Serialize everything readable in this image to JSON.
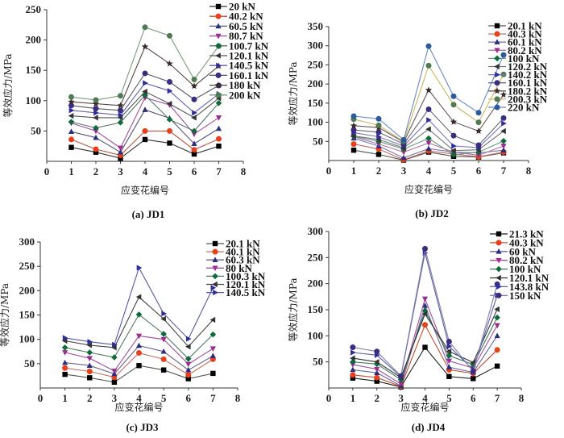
{
  "figure": {
    "panels": [
      "JD1",
      "JD2",
      "JD3",
      "JD4"
    ]
  },
  "chart_data": [
    {
      "type": "line",
      "id": "a",
      "caption": "(a) JD1",
      "title": "",
      "xlabel": "应变花编号",
      "ylabel": "等效应力/MPa",
      "xlim": [
        0,
        8
      ],
      "ylim": [
        0,
        250
      ],
      "x_ticks": [
        "0",
        "1",
        "2",
        "3",
        "4",
        "5",
        "6",
        "7",
        "8"
      ],
      "y_ticks": [
        "50",
        "100",
        "150",
        "200",
        "250"
      ],
      "y_tick_values": [
        50,
        100,
        150,
        200,
        250
      ],
      "grid": false,
      "legend_position": "top-right",
      "x": [
        1,
        2,
        3,
        4,
        5,
        6,
        7
      ],
      "series": [
        {
          "name": "20 kN",
          "marker": "square",
          "color": "#000000",
          "line": "#333333",
          "values": [
            23,
            15,
            5,
            36,
            30,
            12,
            25
          ]
        },
        {
          "name": "40.2 kN",
          "marker": "circle",
          "color": "#e8401c",
          "line": "#b5553c",
          "values": [
            36,
            20,
            10,
            50,
            50,
            19,
            37
          ]
        },
        {
          "name": "60.5 kN",
          "marker": "triangle-up",
          "color": "#2b2d7f",
          "line": "#555577",
          "values": [
            49,
            39,
            15,
            85,
            71,
            29,
            54
          ]
        },
        {
          "name": "80.7 kN",
          "marker": "triangle-down",
          "color": "#9b2d91",
          "line": "#a050a0",
          "values": [
            63,
            50,
            22,
            105,
            93,
            45,
            72
          ]
        },
        {
          "name": "100.7 kN",
          "marker": "diamond",
          "color": "#0d6b3b",
          "line": "#557766",
          "values": [
            65,
            55,
            64,
            109,
            69,
            50,
            96
          ]
        },
        {
          "name": "120.1 kN",
          "marker": "triangle-left",
          "color": "#333333",
          "line": "#555555",
          "values": [
            75,
            72,
            72,
            115,
            95,
            72,
            104
          ]
        },
        {
          "name": "140.5 kN",
          "marker": "triangle-right",
          "color": "#2d2d9b",
          "line": "#6060a8",
          "values": [
            84,
            80,
            76,
            129,
            116,
            80,
            111
          ]
        },
        {
          "name": "160.1 kN",
          "marker": "circle",
          "color": "#3a2d7f",
          "line": "#555566",
          "values": [
            92,
            87,
            84,
            145,
            131,
            102,
            125
          ]
        },
        {
          "name": "180 kN",
          "marker": "star",
          "color": "#3b2a2a",
          "line": "#554444",
          "values": [
            98,
            95,
            92,
            189,
            161,
            124,
            157
          ]
        },
        {
          "name": "200 kN",
          "marker": "circle",
          "color": "#4f7a52",
          "line": "#7a9a7c",
          "values": [
            106,
            101,
            108,
            221,
            207,
            135,
            190
          ]
        }
      ]
    },
    {
      "type": "line",
      "id": "b",
      "caption": "(b) JD2",
      "title": "",
      "xlabel": "应变花编号",
      "ylabel": "等效应力/MPa",
      "xlim": [
        0,
        8
      ],
      "ylim": [
        0,
        350
      ],
      "x_ticks": [
        "0",
        "1",
        "2",
        "3",
        "4",
        "5",
        "6",
        "7",
        "8"
      ],
      "y_ticks": [
        "50",
        "100",
        "150",
        "200",
        "250",
        "300",
        "350"
      ],
      "y_tick_values": [
        50,
        100,
        150,
        200,
        250,
        300,
        350
      ],
      "grid": false,
      "legend_position": "top-right",
      "x": [
        1,
        2,
        3,
        4,
        5,
        6,
        7
      ],
      "series": [
        {
          "name": "20.1 kN",
          "marker": "square",
          "color": "#000000",
          "line": "#555555",
          "values": [
            27,
            16,
            1,
            22,
            11,
            9,
            20
          ]
        },
        {
          "name": "40.3 kN",
          "marker": "circle",
          "color": "#e8401c",
          "line": "#c07060",
          "values": [
            43,
            30,
            2,
            25,
            17,
            10,
            22
          ]
        },
        {
          "name": "60.1 kN",
          "marker": "triangle-up",
          "color": "#2b2d7f",
          "line": "#7777aa",
          "values": [
            58,
            38,
            7,
            31,
            22,
            20,
            27
          ]
        },
        {
          "name": "80.2 kN",
          "marker": "triangle-down",
          "color": "#9b2d91",
          "line": "#b070b0",
          "values": [
            62,
            43,
            22,
            46,
            22,
            14,
            38
          ]
        },
        {
          "name": "100 kN",
          "marker": "diamond",
          "color": "#0d6b3b",
          "line": "#669977",
          "values": [
            63,
            50,
            30,
            58,
            15,
            22,
            51
          ]
        },
        {
          "name": "120.2 kN",
          "marker": "triangle-left",
          "color": "#333333",
          "line": "#777777",
          "values": [
            64,
            55,
            33,
            82,
            26,
            28,
            77
          ]
        },
        {
          "name": "140.2 kN",
          "marker": "triangle-right",
          "color": "#2d2d9b",
          "line": "#7777bb",
          "values": [
            73,
            62,
            38,
            106,
            38,
            34,
            97
          ]
        },
        {
          "name": "160.1 kN",
          "marker": "circle",
          "color": "#3a2d7f",
          "line": "#666677",
          "values": [
            80,
            74,
            43,
            134,
            65,
            40,
            111
          ]
        },
        {
          "name": "180.2 kN",
          "marker": "star",
          "color": "#3b2a2a",
          "line": "#665555",
          "values": [
            91,
            86,
            48,
            184,
            101,
            77,
            172
          ]
        },
        {
          "name": "200.3 kN",
          "marker": "circle",
          "color": "#4f7a52",
          "line": "#c8b860",
          "values": [
            108,
            92,
            50,
            248,
            146,
            100,
            225
          ]
        },
        {
          "name": "220 kN",
          "marker": "circle",
          "color": "#2b5aa0",
          "line": "#6a8ac0",
          "values": [
            116,
            109,
            54,
            299,
            168,
            125,
            276
          ]
        }
      ]
    },
    {
      "type": "line",
      "id": "c",
      "caption": "(c) JD3",
      "title": "",
      "xlabel": "应变花编号",
      "ylabel": "等效应力/MPa",
      "xlim": [
        0,
        8
      ],
      "ylim": [
        0,
        300
      ],
      "x_ticks": [
        "0",
        "1",
        "2",
        "3",
        "4",
        "5",
        "6",
        "7",
        "8"
      ],
      "y_ticks": [
        "50",
        "100",
        "150",
        "200",
        "250",
        "300"
      ],
      "y_tick_values": [
        50,
        100,
        150,
        200,
        250,
        300
      ],
      "grid": false,
      "legend_position": "top-right",
      "x": [
        1,
        2,
        3,
        4,
        5,
        6,
        7
      ],
      "series": [
        {
          "name": "20.1 kN",
          "marker": "square",
          "color": "#000000",
          "line": "#555555",
          "values": [
            28,
            21,
            12,
            46,
            37,
            19,
            30
          ]
        },
        {
          "name": "40.1 kN",
          "marker": "circle",
          "color": "#e8401c",
          "line": "#c07060",
          "values": [
            41,
            34,
            22,
            72,
            59,
            27,
            59
          ]
        },
        {
          "name": "60.3 kN",
          "marker": "triangle-up",
          "color": "#2b2d7f",
          "line": "#666688",
          "values": [
            52,
            46,
            29,
            87,
            75,
            37,
            66
          ]
        },
        {
          "name": "80 kN",
          "marker": "triangle-down",
          "color": "#9b2d91",
          "line": "#a050a0",
          "values": [
            73,
            61,
            35,
            107,
            100,
            49,
            81
          ]
        },
        {
          "name": "100.3 kN",
          "marker": "diamond",
          "color": "#0d6b3b",
          "line": "#4f7a5c",
          "values": [
            83,
            73,
            63,
            151,
            111,
            60,
            110
          ]
        },
        {
          "name": "120.1 kN",
          "marker": "triangle-left",
          "color": "#333333",
          "line": "#444444",
          "values": [
            97,
            88,
            83,
            187,
            142,
            85,
            140
          ]
        },
        {
          "name": "140.5 kN",
          "marker": "triangle-right",
          "color": "#2d2d9b",
          "line": "#5555aa",
          "values": [
            103,
            95,
            89,
            247,
            153,
            101,
            206
          ]
        }
      ]
    },
    {
      "type": "line",
      "id": "d",
      "caption": "(d) JD4",
      "title": "",
      "xlabel": "应变花编号",
      "ylabel": "等效应力/MPa",
      "xlim": [
        0,
        8
      ],
      "ylim": [
        0,
        300
      ],
      "x_ticks": [
        "0",
        "1",
        "2",
        "3",
        "4",
        "5",
        "6",
        "7",
        "8"
      ],
      "y_ticks": [
        "50",
        "100",
        "150",
        "200",
        "250",
        "300"
      ],
      "y_tick_values": [
        50,
        100,
        150,
        200,
        250,
        300
      ],
      "grid": false,
      "legend_position": "top-right",
      "x": [
        1,
        2,
        3,
        4,
        5,
        6,
        7
      ],
      "series": [
        {
          "name": "21.3 kN",
          "marker": "square",
          "color": "#000000",
          "line": "#222222",
          "values": [
            19,
            13,
            2,
            78,
            22,
            18,
            42
          ]
        },
        {
          "name": "40.3 kN",
          "marker": "circle",
          "color": "#e8401c",
          "line": "#c0502c",
          "values": [
            25,
            20,
            3,
            121,
            35,
            28,
            73
          ]
        },
        {
          "name": "60 kN",
          "marker": "triangle-up",
          "color": "#2b2d7f",
          "line": "#6a6aa0",
          "values": [
            35,
            29,
            4,
            158,
            40,
            30,
            100
          ]
        },
        {
          "name": "80.2 kN",
          "marker": "triangle-down",
          "color": "#9b2d91",
          "line": "#a050a0",
          "values": [
            45,
            36,
            8,
            171,
            52,
            38,
            120
          ]
        },
        {
          "name": "100 kN",
          "marker": "diamond",
          "color": "#0d6b3b",
          "line": "#3f7a5a",
          "values": [
            50,
            46,
            16,
            148,
            62,
            45,
            135
          ]
        },
        {
          "name": "120.1 kN",
          "marker": "triangle-left",
          "color": "#333333",
          "line": "#333333",
          "values": [
            57,
            50,
            20,
            142,
            70,
            49,
            151
          ]
        },
        {
          "name": "143.8 kN",
          "marker": "triangle-right",
          "color": "#2d2d9b",
          "line": "#6060a8",
          "values": [
            68,
            63,
            22,
            259,
            80,
            35,
            178
          ]
        },
        {
          "name": "150 kN",
          "marker": "circle",
          "color": "#3a2d7f",
          "line": "#8080a8",
          "values": [
            78,
            70,
            23,
            267,
            89,
            32,
            199
          ]
        }
      ]
    }
  ]
}
